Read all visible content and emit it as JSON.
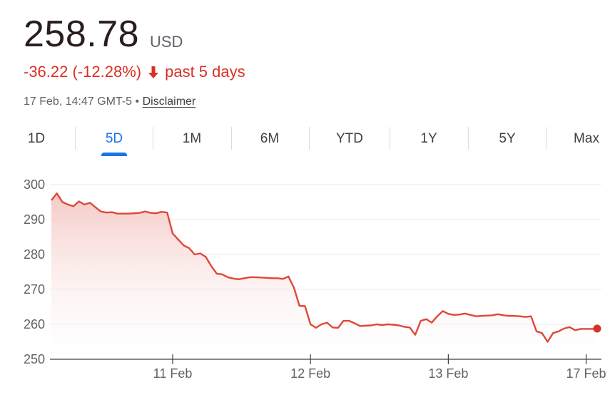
{
  "quote": {
    "price": "258.78",
    "currency": "USD",
    "change": "-36.22 (-12.28%)",
    "period": "past 5 days",
    "timestamp": "17 Feb, 14:47 GMT-5",
    "separator": "•",
    "disclaimer": "Disclaimer"
  },
  "tabs": [
    {
      "label": "1D"
    },
    {
      "label": "5D",
      "active": true
    },
    {
      "label": "1M"
    },
    {
      "label": "6M"
    },
    {
      "label": "YTD"
    },
    {
      "label": "1Y"
    },
    {
      "label": "5Y"
    },
    {
      "label": "Max"
    }
  ],
  "colors": {
    "line": "#e0473a",
    "fill_top": "#f4c7c3",
    "accent": "#1a73e8",
    "negative": "#d93025"
  },
  "chart_data": {
    "type": "area",
    "yticks": [
      250,
      260,
      270,
      280,
      290,
      300
    ],
    "ylim": [
      250,
      300
    ],
    "xticks": [
      "11 Feb",
      "12 Feb",
      "13 Feb",
      "17 Feb"
    ],
    "xtick_index": [
      22,
      47,
      72,
      97
    ],
    "grid": true,
    "series": [
      {
        "values": [
          295.5,
          297.5,
          295.0,
          294.3,
          293.8,
          295.2,
          294.3,
          294.8,
          293.5,
          292.3,
          292.0,
          292.1,
          291.7,
          291.7,
          291.7,
          291.8,
          291.9,
          292.3,
          291.9,
          291.8,
          292.2,
          292.0,
          286.0,
          284.3,
          282.6,
          281.8,
          280.0,
          280.3,
          279.3,
          276.7,
          274.5,
          274.3,
          273.5,
          273.1,
          272.9,
          273.2,
          273.5,
          273.5,
          273.4,
          273.3,
          273.2,
          273.2,
          273.0,
          273.7,
          270.5,
          265.3,
          265.2,
          260.0,
          259.0,
          260.0,
          260.5,
          259.1,
          259.0,
          261.0,
          261.0,
          260.3,
          259.5,
          259.6,
          259.7,
          260.0,
          259.8,
          260.0,
          259.9,
          259.7,
          259.3,
          259.1,
          257.0,
          261.0,
          261.5,
          260.5,
          262.3,
          263.8,
          263.0,
          262.7,
          262.8,
          263.1,
          262.7,
          262.3,
          262.4,
          262.5,
          262.6,
          262.9,
          262.6,
          262.4,
          262.4,
          262.3,
          262.1,
          262.3,
          258.0,
          257.5,
          255.0,
          257.5,
          258.0,
          258.8,
          259.2,
          258.3,
          258.7,
          258.7,
          258.7,
          258.78
        ]
      }
    ],
    "last_value": 258.78
  }
}
